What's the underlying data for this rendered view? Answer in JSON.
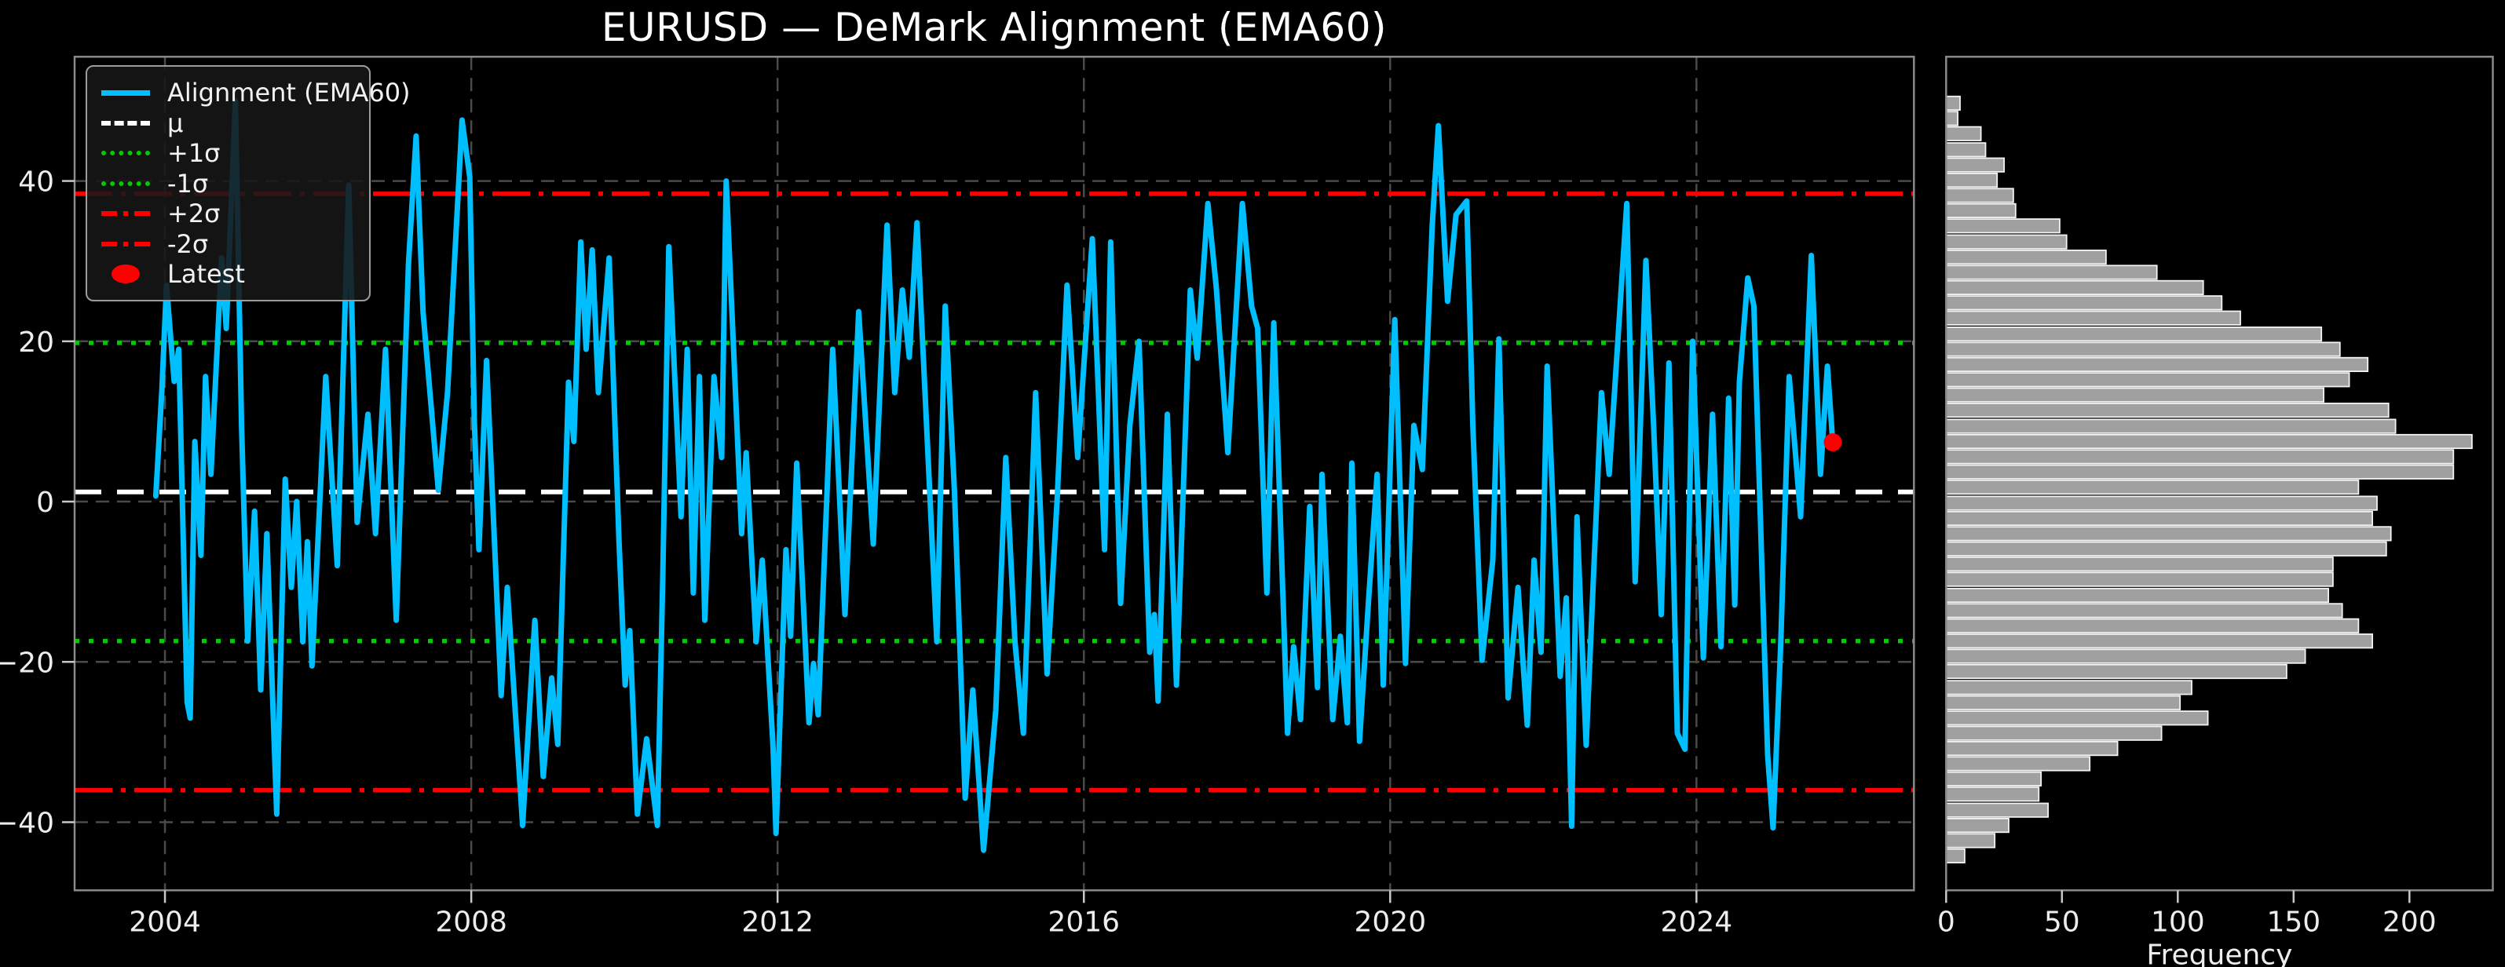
{
  "title": "EURUSD — DeMark Alignment (EMA60)",
  "colors": {
    "background": "#000000",
    "line": "#00BFFF",
    "mu_line": "#FFFFFF",
    "sigma1_line": "#00CC00",
    "sigma2_line": "#FF0000",
    "latest_marker": "#FF0000",
    "bar_fill": "#A0A0A0",
    "bar_edge": "#F2F2F2",
    "grid": "#4A4A4A",
    "spine": "#8A8A8A",
    "tick": "#C8C8C8",
    "text": "#EDEDED"
  },
  "legend": {
    "items": [
      {
        "label": "Alignment (EMA60)",
        "swatch": "cyan-line"
      },
      {
        "label": "μ",
        "swatch": "white-dash"
      },
      {
        "label": "+1σ",
        "swatch": "green-dot"
      },
      {
        "label": "-1σ",
        "swatch": "green-dot"
      },
      {
        "label": "+2σ",
        "swatch": "red-dashdot"
      },
      {
        "label": "-2σ",
        "swatch": "red-dashdot"
      },
      {
        "label": "Latest",
        "swatch": "red-dot"
      }
    ]
  },
  "chart_data": [
    {
      "type": "line",
      "title": "EURUSD — DeMark Alignment (EMA60)",
      "xlabel": "",
      "ylabel": "",
      "xlim": [
        2002.82,
        2026.84
      ],
      "ylim": [
        -48.5,
        55.5
      ],
      "xticks": [
        2004,
        2008,
        2012,
        2016,
        2020,
        2024
      ],
      "xtick_labels": [
        "2004",
        "2008",
        "2012",
        "2016",
        "2020",
        "2024"
      ],
      "yticks": [
        40,
        20,
        0,
        -20,
        -40
      ],
      "ytick_labels": [
        "40",
        "20",
        "0",
        "−20",
        "−40"
      ],
      "grid": true,
      "legend_position": "upper left",
      "levels": {
        "mu": 1.2,
        "sigma": 18.6,
        "plus1": 19.8,
        "minus1": -17.4,
        "plus2": 38.4,
        "minus2": -36.0
      },
      "latest": {
        "x": 2025.78,
        "y": 7.4
      },
      "series": [
        {
          "name": "Alignment (EMA60)",
          "color": "#00BFFF",
          "points": [
            [
              2003.88,
              0.7
            ],
            [
              2003.96,
              14
            ],
            [
              2004.02,
              27
            ],
            [
              2004.12,
              15
            ],
            [
              2004.18,
              19
            ],
            [
              2004.29,
              -25
            ],
            [
              2004.33,
              -27
            ],
            [
              2004.39,
              7.5
            ],
            [
              2004.47,
              -6.7
            ],
            [
              2004.53,
              15.6
            ],
            [
              2004.6,
              3.4
            ],
            [
              2004.74,
              30.4
            ],
            [
              2004.8,
              21.6
            ],
            [
              2004.92,
              50
            ],
            [
              2005.0,
              9.5
            ],
            [
              2005.08,
              -17.4
            ],
            [
              2005.17,
              -1.2
            ],
            [
              2005.25,
              -23.5
            ],
            [
              2005.33,
              -4
            ],
            [
              2005.46,
              -39
            ],
            [
              2005.57,
              2.8
            ],
            [
              2005.65,
              -10.7
            ],
            [
              2005.72,
              0
            ],
            [
              2005.8,
              -17.5
            ],
            [
              2005.86,
              -5
            ],
            [
              2005.92,
              -20.5
            ],
            [
              2006.1,
              15.6
            ],
            [
              2006.25,
              -8
            ],
            [
              2006.4,
              39.5
            ],
            [
              2006.51,
              -2.6
            ],
            [
              2006.65,
              10.9
            ],
            [
              2006.75,
              -4
            ],
            [
              2006.88,
              19
            ],
            [
              2007.02,
              -14.8
            ],
            [
              2007.18,
              29.7
            ],
            [
              2007.28,
              45.6
            ],
            [
              2007.37,
              23.7
            ],
            [
              2007.57,
              1.4
            ],
            [
              2007.69,
              13.6
            ],
            [
              2007.88,
              47.6
            ],
            [
              2007.98,
              40.5
            ],
            [
              2008.04,
              10.2
            ],
            [
              2008.1,
              -6
            ],
            [
              2008.2,
              17.6
            ],
            [
              2008.39,
              -24.2
            ],
            [
              2008.47,
              -10.7
            ],
            [
              2008.67,
              -40.4
            ],
            [
              2008.83,
              -14.8
            ],
            [
              2008.94,
              -34.3
            ],
            [
              2009.05,
              -22
            ],
            [
              2009.13,
              -30.3
            ],
            [
              2009.27,
              14.9
            ],
            [
              2009.34,
              7.5
            ],
            [
              2009.43,
              32.4
            ],
            [
              2009.5,
              19
            ],
            [
              2009.58,
              31.4
            ],
            [
              2009.66,
              13.6
            ],
            [
              2009.8,
              30.4
            ],
            [
              2009.93,
              -5
            ],
            [
              2010.01,
              -22.9
            ],
            [
              2010.07,
              -16.1
            ],
            [
              2010.17,
              -39
            ],
            [
              2010.29,
              -29.6
            ],
            [
              2010.43,
              -40.4
            ],
            [
              2010.5,
              -10
            ],
            [
              2010.58,
              31.8
            ],
            [
              2010.74,
              -1.9
            ],
            [
              2010.82,
              19
            ],
            [
              2010.9,
              -11.4
            ],
            [
              2010.98,
              15.6
            ],
            [
              2011.05,
              -14.8
            ],
            [
              2011.17,
              15.6
            ],
            [
              2011.27,
              5.5
            ],
            [
              2011.33,
              40
            ],
            [
              2011.45,
              13.6
            ],
            [
              2011.53,
              -4
            ],
            [
              2011.59,
              6.1
            ],
            [
              2011.72,
              -17.5
            ],
            [
              2011.8,
              -7.3
            ],
            [
              2011.94,
              -30.3
            ],
            [
              2011.98,
              -41.4
            ],
            [
              2012.11,
              -6
            ],
            [
              2012.17,
              -16.8
            ],
            [
              2012.25,
              4.8
            ],
            [
              2012.41,
              -27.6
            ],
            [
              2012.47,
              -20.2
            ],
            [
              2012.53,
              -26.6
            ],
            [
              2012.72,
              19
            ],
            [
              2012.88,
              -14.1
            ],
            [
              2013.06,
              23.7
            ],
            [
              2013.25,
              -5.3
            ],
            [
              2013.43,
              34.5
            ],
            [
              2013.53,
              13.6
            ],
            [
              2013.63,
              26.4
            ],
            [
              2013.72,
              18
            ],
            [
              2013.82,
              34.8
            ],
            [
              2014.08,
              -17.5
            ],
            [
              2014.19,
              24.4
            ],
            [
              2014.31,
              1.4
            ],
            [
              2014.45,
              -37
            ],
            [
              2014.55,
              -23.5
            ],
            [
              2014.69,
              -43.5
            ],
            [
              2014.85,
              -26
            ],
            [
              2014.98,
              5.5
            ],
            [
              2015.1,
              -17.5
            ],
            [
              2015.21,
              -28.9
            ],
            [
              2015.37,
              13.6
            ],
            [
              2015.52,
              -21.5
            ],
            [
              2015.65,
              0
            ],
            [
              2015.78,
              27
            ],
            [
              2015.92,
              5.5
            ],
            [
              2016.11,
              32.8
            ],
            [
              2016.27,
              -6
            ],
            [
              2016.35,
              32.4
            ],
            [
              2016.48,
              -12.7
            ],
            [
              2016.6,
              9.5
            ],
            [
              2016.72,
              20
            ],
            [
              2016.86,
              -18.8
            ],
            [
              2016.92,
              -14.1
            ],
            [
              2016.97,
              -24.9
            ],
            [
              2017.09,
              10.9
            ],
            [
              2017.21,
              -22.9
            ],
            [
              2017.39,
              26.4
            ],
            [
              2017.48,
              17.9
            ],
            [
              2017.62,
              37.2
            ],
            [
              2017.73,
              26.7
            ],
            [
              2017.88,
              6.1
            ],
            [
              2018.07,
              37.2
            ],
            [
              2018.19,
              24.4
            ],
            [
              2018.27,
              21.6
            ],
            [
              2018.39,
              -11.4
            ],
            [
              2018.48,
              22.3
            ],
            [
              2018.66,
              -28.9
            ],
            [
              2018.74,
              -18.1
            ],
            [
              2018.83,
              -27.2
            ],
            [
              2018.95,
              -0.6
            ],
            [
              2019.05,
              -23.2
            ],
            [
              2019.11,
              3.4
            ],
            [
              2019.25,
              -27.2
            ],
            [
              2019.35,
              -16.8
            ],
            [
              2019.44,
              -27.6
            ],
            [
              2019.5,
              4.8
            ],
            [
              2019.6,
              -29.9
            ],
            [
              2019.72,
              -12
            ],
            [
              2019.83,
              3.4
            ],
            [
              2019.91,
              -22.9
            ],
            [
              2020.06,
              22.7
            ],
            [
              2020.2,
              -20.2
            ],
            [
              2020.31,
              9.5
            ],
            [
              2020.42,
              4
            ],
            [
              2020.55,
              34.5
            ],
            [
              2020.63,
              46.9
            ],
            [
              2020.75,
              25
            ],
            [
              2020.86,
              35.8
            ],
            [
              2021.0,
              37.5
            ],
            [
              2021.08,
              9.5
            ],
            [
              2021.2,
              -19.8
            ],
            [
              2021.34,
              -7.3
            ],
            [
              2021.42,
              20.3
            ],
            [
              2021.54,
              -24.5
            ],
            [
              2021.67,
              -10.7
            ],
            [
              2021.79,
              -27.9
            ],
            [
              2021.88,
              -7.3
            ],
            [
              2021.97,
              -18.8
            ],
            [
              2022.05,
              16.9
            ],
            [
              2022.22,
              -21.8
            ],
            [
              2022.3,
              -12
            ],
            [
              2022.37,
              -40.5
            ],
            [
              2022.44,
              -1.9
            ],
            [
              2022.56,
              -30.4
            ],
            [
              2022.76,
              13.6
            ],
            [
              2022.86,
              3.4
            ],
            [
              2023.09,
              37.2
            ],
            [
              2023.2,
              -10
            ],
            [
              2023.34,
              30.1
            ],
            [
              2023.44,
              9.5
            ],
            [
              2023.54,
              -14.1
            ],
            [
              2023.64,
              17.3
            ],
            [
              2023.75,
              -28.9
            ],
            [
              2023.85,
              -30.9
            ],
            [
              2023.95,
              20
            ],
            [
              2024.09,
              -19.5
            ],
            [
              2024.21,
              10.9
            ],
            [
              2024.32,
              -18.1
            ],
            [
              2024.42,
              12.9
            ],
            [
              2024.5,
              -12.9
            ],
            [
              2024.56,
              14.9
            ],
            [
              2024.67,
              27.9
            ],
            [
              2024.75,
              24.4
            ],
            [
              2024.93,
              -31.6
            ],
            [
              2025.0,
              -40.7
            ],
            [
              2025.1,
              -18
            ],
            [
              2025.21,
              15.6
            ],
            [
              2025.36,
              -1.9
            ],
            [
              2025.5,
              30.7
            ],
            [
              2025.62,
              3.4
            ],
            [
              2025.71,
              16.9
            ],
            [
              2025.78,
              7.4
            ]
          ]
        }
      ]
    },
    {
      "type": "bar",
      "orientation": "horizontal",
      "xlabel": "Frequency",
      "ylabel": "",
      "xlim": [
        0,
        236
      ],
      "xticks": [
        0,
        50,
        100,
        150,
        200
      ],
      "xtick_labels": [
        "0",
        "50",
        "100",
        "150",
        "200"
      ],
      "grid": false,
      "bin_centers": [
        -44.2,
        -42.3,
        -40.4,
        -38.5,
        -36.5,
        -34.6,
        -32.7,
        -30.8,
        -28.9,
        -27.0,
        -25.1,
        -23.2,
        -21.2,
        -19.3,
        -17.4,
        -15.5,
        -13.6,
        -11.7,
        -9.7,
        -7.8,
        -5.9,
        -4.0,
        -2.1,
        -0.2,
        1.8,
        3.7,
        5.6,
        7.5,
        9.4,
        11.4,
        13.3,
        15.2,
        17.1,
        19.0,
        20.9,
        22.9,
        24.8,
        26.7,
        28.6,
        30.5,
        32.4,
        34.4,
        36.3,
        38.2,
        40.1,
        42.0,
        43.9,
        45.9,
        47.8,
        49.7
      ],
      "frequencies": [
        8,
        21,
        27,
        44,
        40,
        41,
        62,
        74,
        93,
        113,
        101,
        106,
        147,
        155,
        184,
        178,
        171,
        165,
        167,
        167,
        190,
        192,
        184,
        186,
        178,
        219,
        219,
        227,
        194,
        191,
        163,
        174,
        182,
        170,
        162,
        127,
        119,
        111,
        91,
        69,
        52,
        49,
        30,
        29,
        22,
        25,
        17,
        15,
        5,
        6
      ]
    }
  ]
}
